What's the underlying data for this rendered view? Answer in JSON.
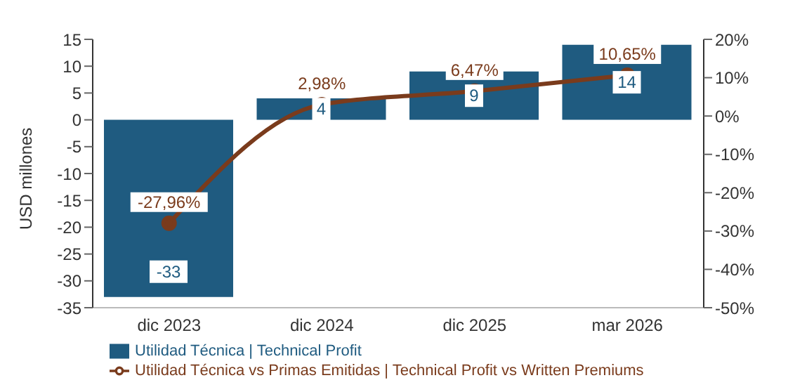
{
  "chart_data": {
    "type": "bar",
    "ylabel": "USD millones",
    "categories": [
      "dic 2023",
      "dic 2024",
      "dic 2025",
      "mar 2026"
    ],
    "series": [
      {
        "name": "Utilidad Técnica | Technical Profit",
        "color": "#1f5b80",
        "values": [
          -33,
          4,
          9,
          14
        ],
        "value_labels": [
          "-33",
          "4",
          "9",
          "14"
        ]
      },
      {
        "name": "Utilidad Técnica vs Primas Emitidas | Technical Profit vs Written Premiums",
        "type": "line",
        "axis": "y2",
        "color": "#7a3b1c",
        "values": [
          -27.96,
          2.98,
          6.47,
          10.65
        ],
        "value_labels": [
          "-27,96%",
          "2,98%",
          "6,47%",
          "10,65%"
        ]
      }
    ],
    "ylim": [
      -35,
      15
    ],
    "yticks": [
      -35,
      -30,
      -25,
      -20,
      -15,
      -10,
      -5,
      0,
      5,
      10,
      15
    ],
    "y2lim": [
      -50,
      20
    ],
    "y2ticks": [
      {
        "value": -50,
        "label": "-50%"
      },
      {
        "value": -40,
        "label": "-40%"
      },
      {
        "value": -30,
        "label": "-30%"
      },
      {
        "value": -20,
        "label": "-20%"
      },
      {
        "value": -10,
        "label": "-10%"
      },
      {
        "value": 0,
        "label": "0%"
      },
      {
        "value": 10,
        "label": "10%"
      },
      {
        "value": 20,
        "label": "20%"
      }
    ],
    "marker": "circle",
    "grid": false,
    "legend": "bottom"
  }
}
